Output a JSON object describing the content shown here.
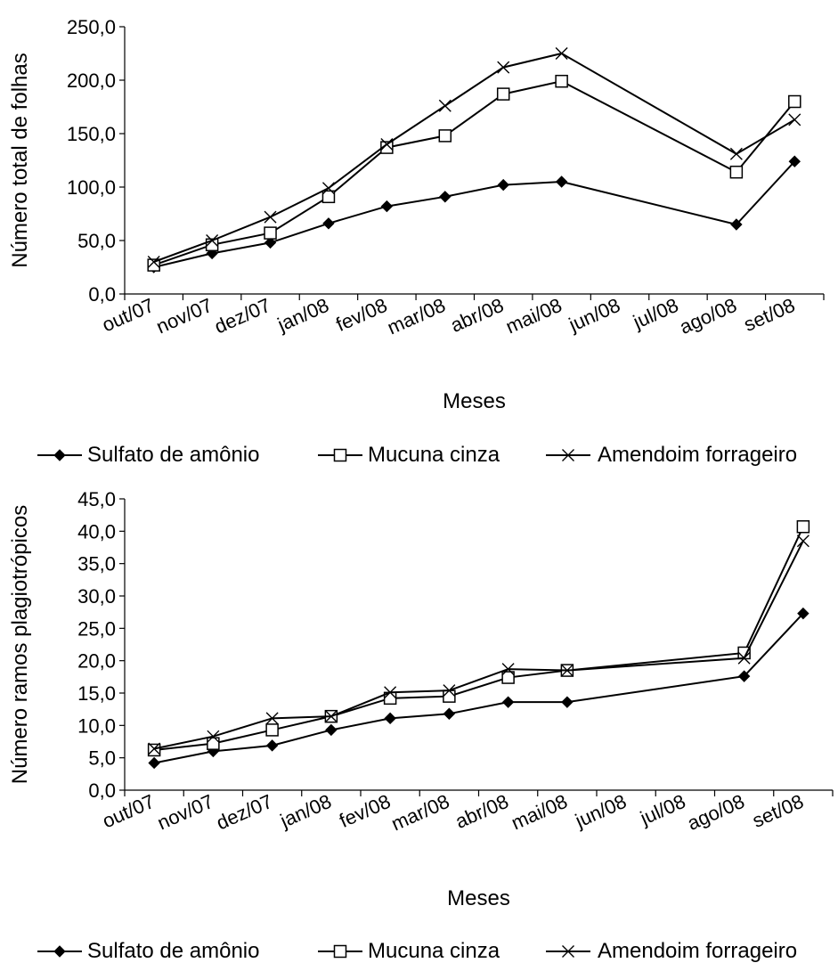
{
  "chart_data": [
    {
      "type": "line",
      "title": "",
      "xlabel": "Meses",
      "ylabel": "Número total de folhas",
      "ylim": [
        0,
        250
      ],
      "yticks": [
        "0,0",
        "50,0",
        "100,0",
        "150,0",
        "200,0",
        "250,0"
      ],
      "categories": [
        "out/07",
        "nov/07",
        "dez/07",
        "jan/08",
        "fev/08",
        "mar/08",
        "abr/08",
        "mai/08",
        "jun/08",
        "jul/08",
        "ago/08",
        "set/08"
      ],
      "legend_position": "bottom",
      "grid": false,
      "series": [
        {
          "name": "Sulfato de amônio",
          "marker": "diamond",
          "values": [
            25,
            38,
            48,
            66,
            82,
            91,
            102,
            105,
            null,
            null,
            65,
            124
          ]
        },
        {
          "name": "Mucuna cinza",
          "marker": "square",
          "values": [
            27,
            46,
            57,
            91,
            137,
            148,
            187,
            199,
            null,
            null,
            114,
            180
          ]
        },
        {
          "name": "Amendoim forrageiro",
          "marker": "x",
          "values": [
            30,
            50,
            72,
            99,
            140,
            176,
            212,
            225,
            null,
            null,
            131,
            163
          ]
        }
      ]
    },
    {
      "type": "line",
      "title": "",
      "xlabel": "Meses",
      "ylabel": "Número ramos plagiotrópicos",
      "ylim": [
        0,
        45
      ],
      "yticks": [
        "0,0",
        "5,0",
        "10,0",
        "15,0",
        "20,0",
        "25,0",
        "30,0",
        "35,0",
        "40,0",
        "45,0"
      ],
      "categories": [
        "out/07",
        "nov/07",
        "dez/07",
        "jan/08",
        "fev/08",
        "mar/08",
        "abr/08",
        "mai/08",
        "jun/08",
        "jul/08",
        "ago/08",
        "set/08"
      ],
      "legend_position": "bottom",
      "grid": false,
      "series": [
        {
          "name": "Sulfato de amônio",
          "marker": "diamond",
          "values": [
            4.2,
            6.0,
            6.9,
            9.3,
            11.1,
            11.8,
            13.6,
            13.6,
            null,
            null,
            17.6,
            27.3
          ]
        },
        {
          "name": "Mucuna cinza",
          "marker": "square",
          "values": [
            6.2,
            7.2,
            9.3,
            11.4,
            14.2,
            14.5,
            17.4,
            18.5,
            null,
            null,
            21.2,
            40.7
          ]
        },
        {
          "name": "Amendoim forrageiro",
          "marker": "x",
          "values": [
            6.4,
            8.3,
            11.1,
            11.4,
            15.1,
            15.4,
            18.7,
            18.5,
            null,
            null,
            20.4,
            38.5
          ]
        }
      ]
    }
  ]
}
